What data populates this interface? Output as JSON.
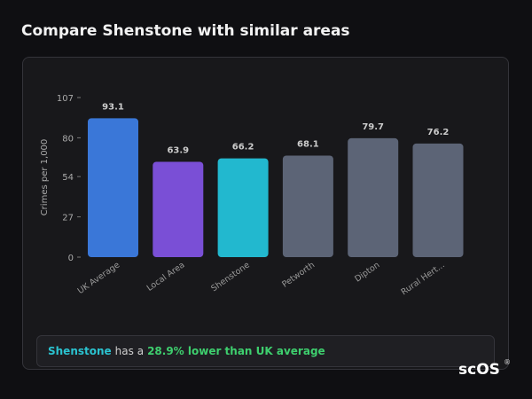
{
  "title": "Compare Shenstone with similar areas",
  "chart_data": {
    "type": "bar",
    "y_label": "Crimes per 1,000",
    "categories": [
      "UK Average",
      "Local Area",
      "Shenstone",
      "Petworth",
      "Dipton",
      "Rural Hert..."
    ],
    "values": [
      93.1,
      63.9,
      66.2,
      68.1,
      79.7,
      76.2
    ],
    "colors": [
      "#3a77d8",
      "#7a4fd6",
      "#22b8cf",
      "#5c6476",
      "#5c6476",
      "#5c6476"
    ],
    "ylim": [
      0,
      107
    ],
    "yticks": [
      0,
      27,
      54,
      80,
      107
    ],
    "grid": false
  },
  "summary": {
    "highlight": "Shenstone",
    "text": "has a",
    "comparison": "28.9% lower than UK average"
  },
  "logo": "scOS",
  "logo_mark": "®"
}
